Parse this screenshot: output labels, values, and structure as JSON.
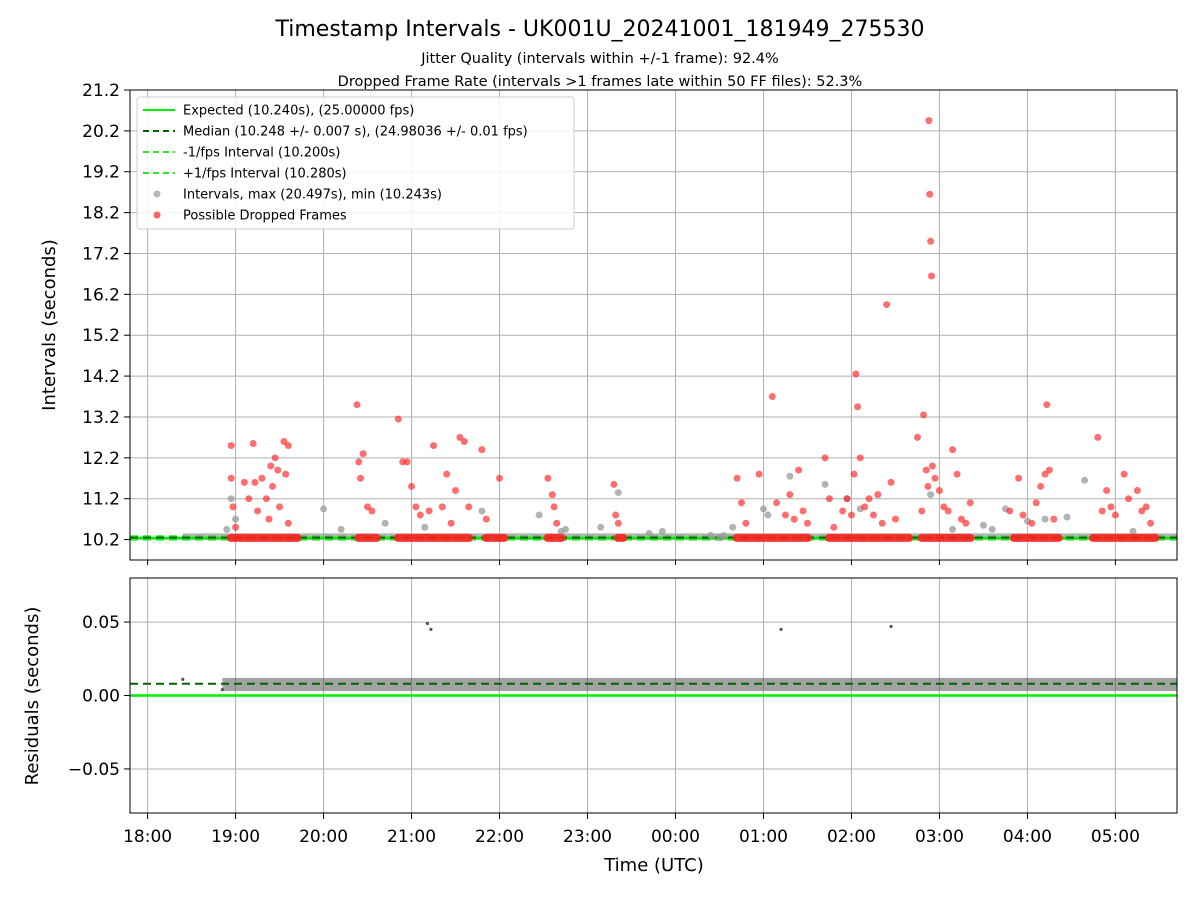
{
  "chart_data": [
    {
      "type": "scatter",
      "panel": "top",
      "title": "Timestamp Intervals - UK001U_20241001_181949_275530",
      "subtitle_1": "Jitter Quality (intervals within +/-1 frame): 92.4%",
      "subtitle_2": "Dropped Frame Rate (intervals >1 frames late within 50 FF files): 52.3%",
      "xlabel": "",
      "ylabel": "Intervals (seconds)",
      "x_hour_range": [
        17.8,
        29.7
      ],
      "ylim": [
        9.7,
        21.2
      ],
      "yticks": [
        "10.2",
        "11.2",
        "12.2",
        "13.2",
        "14.2",
        "15.2",
        "16.2",
        "17.2",
        "18.2",
        "19.2",
        "20.2",
        "21.2"
      ],
      "grid": true,
      "legend_position": "top-left",
      "legend": [
        "Expected (10.240s), (25.00000 fps)",
        "Median (10.248 +/- 0.007 s), (24.98036 +/- 0.01 fps)",
        "-1/fps Interval (10.200s)",
        "+1/fps Interval (10.280s)",
        "Intervals, max (20.497s), min (10.243s)",
        "Possible Dropped Frames"
      ],
      "reference_lines": {
        "expected": 10.24,
        "median": 10.248,
        "minus_1fps": 10.2,
        "plus_1fps": 10.28
      },
      "dropped_bands": [
        [
          18.9,
          19.75
        ],
        [
          20.35,
          20.65
        ],
        [
          20.8,
          21.7
        ],
        [
          21.8,
          22.1
        ],
        [
          22.5,
          22.75
        ],
        [
          23.3,
          23.45
        ],
        [
          24.65,
          25.55
        ],
        [
          25.7,
          26.7
        ],
        [
          26.75,
          27.4
        ],
        [
          27.8,
          28.4
        ],
        [
          28.7,
          29.5
        ]
      ],
      "dropped_points": [
        [
          18.95,
          12.5
        ],
        [
          18.95,
          11.7
        ],
        [
          18.97,
          11.0
        ],
        [
          19.0,
          10.5
        ],
        [
          19.1,
          11.6
        ],
        [
          19.15,
          11.2
        ],
        [
          19.2,
          12.55
        ],
        [
          19.22,
          11.6
        ],
        [
          19.3,
          11.7
        ],
        [
          19.35,
          11.2
        ],
        [
          19.4,
          12.0
        ],
        [
          19.42,
          11.5
        ],
        [
          19.45,
          12.2
        ],
        [
          19.48,
          11.9
        ],
        [
          19.5,
          11.0
        ],
        [
          19.55,
          12.6
        ],
        [
          19.57,
          11.8
        ],
        [
          19.6,
          12.5
        ],
        [
          19.6,
          10.6
        ],
        [
          19.38,
          10.7
        ],
        [
          19.25,
          10.9
        ],
        [
          20.38,
          13.5
        ],
        [
          20.4,
          12.1
        ],
        [
          20.42,
          11.7
        ],
        [
          20.45,
          12.3
        ],
        [
          20.5,
          11.0
        ],
        [
          20.55,
          10.9
        ],
        [
          20.85,
          13.15
        ],
        [
          20.9,
          12.1
        ],
        [
          20.95,
          12.1
        ],
        [
          21.0,
          11.5
        ],
        [
          21.05,
          11.0
        ],
        [
          21.1,
          10.8
        ],
        [
          21.2,
          10.9
        ],
        [
          21.25,
          12.5
        ],
        [
          21.35,
          11.0
        ],
        [
          21.4,
          11.8
        ],
        [
          21.45,
          10.6
        ],
        [
          21.5,
          11.4
        ],
        [
          21.55,
          12.7
        ],
        [
          21.6,
          12.6
        ],
        [
          21.65,
          11.0
        ],
        [
          21.8,
          12.4
        ],
        [
          21.85,
          10.7
        ],
        [
          22.0,
          11.7
        ],
        [
          22.55,
          11.7
        ],
        [
          22.6,
          11.3
        ],
        [
          22.62,
          11.0
        ],
        [
          22.65,
          10.6
        ],
        [
          23.3,
          11.55
        ],
        [
          23.32,
          10.8
        ],
        [
          23.35,
          10.6
        ],
        [
          24.7,
          11.7
        ],
        [
          24.75,
          11.1
        ],
        [
          24.8,
          10.6
        ],
        [
          24.95,
          11.8
        ],
        [
          25.1,
          13.7
        ],
        [
          25.15,
          11.1
        ],
        [
          25.25,
          10.8
        ],
        [
          25.3,
          11.3
        ],
        [
          25.35,
          10.7
        ],
        [
          25.4,
          11.9
        ],
        [
          25.45,
          10.9
        ],
        [
          25.5,
          10.6
        ],
        [
          25.7,
          12.2
        ],
        [
          25.75,
          11.2
        ],
        [
          25.8,
          10.5
        ],
        [
          25.9,
          10.9
        ],
        [
          25.95,
          11.2
        ],
        [
          26.0,
          10.8
        ],
        [
          26.03,
          11.8
        ],
        [
          26.05,
          14.25
        ],
        [
          26.07,
          13.45
        ],
        [
          26.1,
          12.2
        ],
        [
          26.15,
          11.0
        ],
        [
          26.2,
          11.2
        ],
        [
          26.25,
          10.8
        ],
        [
          26.3,
          11.3
        ],
        [
          26.35,
          10.6
        ],
        [
          26.4,
          15.95
        ],
        [
          26.45,
          11.6
        ],
        [
          26.5,
          10.7
        ],
        [
          26.75,
          12.7
        ],
        [
          26.8,
          10.9
        ],
        [
          26.82,
          13.25
        ],
        [
          26.85,
          11.9
        ],
        [
          26.87,
          11.5
        ],
        [
          26.88,
          20.45
        ],
        [
          26.89,
          18.65
        ],
        [
          26.9,
          17.5
        ],
        [
          26.91,
          16.65
        ],
        [
          26.92,
          12.0
        ],
        [
          26.95,
          11.7
        ],
        [
          27.0,
          11.4
        ],
        [
          27.05,
          11.0
        ],
        [
          27.1,
          10.9
        ],
        [
          27.15,
          12.4
        ],
        [
          27.2,
          11.8
        ],
        [
          27.25,
          10.7
        ],
        [
          27.3,
          10.6
        ],
        [
          27.35,
          11.1
        ],
        [
          27.8,
          10.9
        ],
        [
          27.9,
          11.7
        ],
        [
          27.95,
          10.8
        ],
        [
          28.05,
          10.6
        ],
        [
          28.1,
          11.1
        ],
        [
          28.15,
          11.5
        ],
        [
          28.2,
          11.8
        ],
        [
          28.22,
          13.5
        ],
        [
          28.25,
          11.9
        ],
        [
          28.3,
          10.7
        ],
        [
          28.8,
          12.7
        ],
        [
          28.85,
          10.9
        ],
        [
          28.9,
          11.4
        ],
        [
          28.95,
          11.0
        ],
        [
          29.0,
          10.8
        ],
        [
          29.1,
          11.8
        ],
        [
          29.15,
          11.2
        ],
        [
          29.25,
          11.4
        ],
        [
          29.3,
          10.9
        ],
        [
          29.35,
          11.0
        ],
        [
          29.4,
          10.6
        ]
      ],
      "normal_points": [
        [
          18.9,
          10.45
        ],
        [
          18.95,
          11.2
        ],
        [
          19.0,
          10.7
        ],
        [
          20.0,
          10.95
        ],
        [
          20.2,
          10.45
        ],
        [
          20.7,
          10.6
        ],
        [
          21.15,
          10.5
        ],
        [
          21.8,
          10.9
        ],
        [
          22.45,
          10.8
        ],
        [
          22.7,
          10.4
        ],
        [
          22.75,
          10.45
        ],
        [
          23.35,
          11.35
        ],
        [
          23.15,
          10.5
        ],
        [
          23.7,
          10.35
        ],
        [
          23.85,
          10.4
        ],
        [
          24.4,
          10.3
        ],
        [
          24.5,
          10.25
        ],
        [
          24.55,
          10.3
        ],
        [
          24.65,
          10.5
        ],
        [
          25.0,
          10.95
        ],
        [
          25.05,
          10.8
        ],
        [
          25.3,
          11.75
        ],
        [
          25.7,
          11.55
        ],
        [
          25.95,
          11.2
        ],
        [
          26.1,
          10.95
        ],
        [
          26.9,
          11.3
        ],
        [
          27.15,
          10.45
        ],
        [
          27.5,
          10.55
        ],
        [
          27.6,
          10.45
        ],
        [
          27.75,
          10.95
        ],
        [
          28.0,
          10.65
        ],
        [
          28.2,
          10.7
        ],
        [
          28.65,
          11.65
        ],
        [
          28.45,
          10.75
        ],
        [
          29.2,
          10.4
        ]
      ]
    },
    {
      "type": "scatter",
      "panel": "bottom",
      "xlabel": "Time (UTC)",
      "ylabel": "Residuals (seconds)",
      "x_hour_range": [
        17.8,
        29.7
      ],
      "ylim": [
        -0.08,
        0.08
      ],
      "yticks": [
        "0.05",
        "0.00",
        "−0.05"
      ],
      "xticks": [
        "18:00",
        "19:00",
        "20:00",
        "21:00",
        "22:00",
        "23:00",
        "00:00",
        "01:00",
        "02:00",
        "03:00",
        "04:00",
        "05:00"
      ],
      "grid": true,
      "zero_line": 0.0,
      "median_line": 0.008,
      "residual_band": [
        0.003,
        0.012
      ],
      "outlier_points": [
        [
          21.18,
          0.049
        ],
        [
          21.22,
          0.045
        ],
        [
          25.2,
          0.045
        ],
        [
          26.45,
          0.047
        ],
        [
          18.4,
          0.011
        ],
        [
          18.85,
          0.004
        ]
      ]
    }
  ],
  "colors": {
    "expected": "#00ee00",
    "median": "#006400",
    "fps_interval": "#22ee22",
    "normal_points": "#999999",
    "dropped_points": "#ff2020",
    "residuals": "#555555",
    "grid": "#b0b0b0"
  }
}
